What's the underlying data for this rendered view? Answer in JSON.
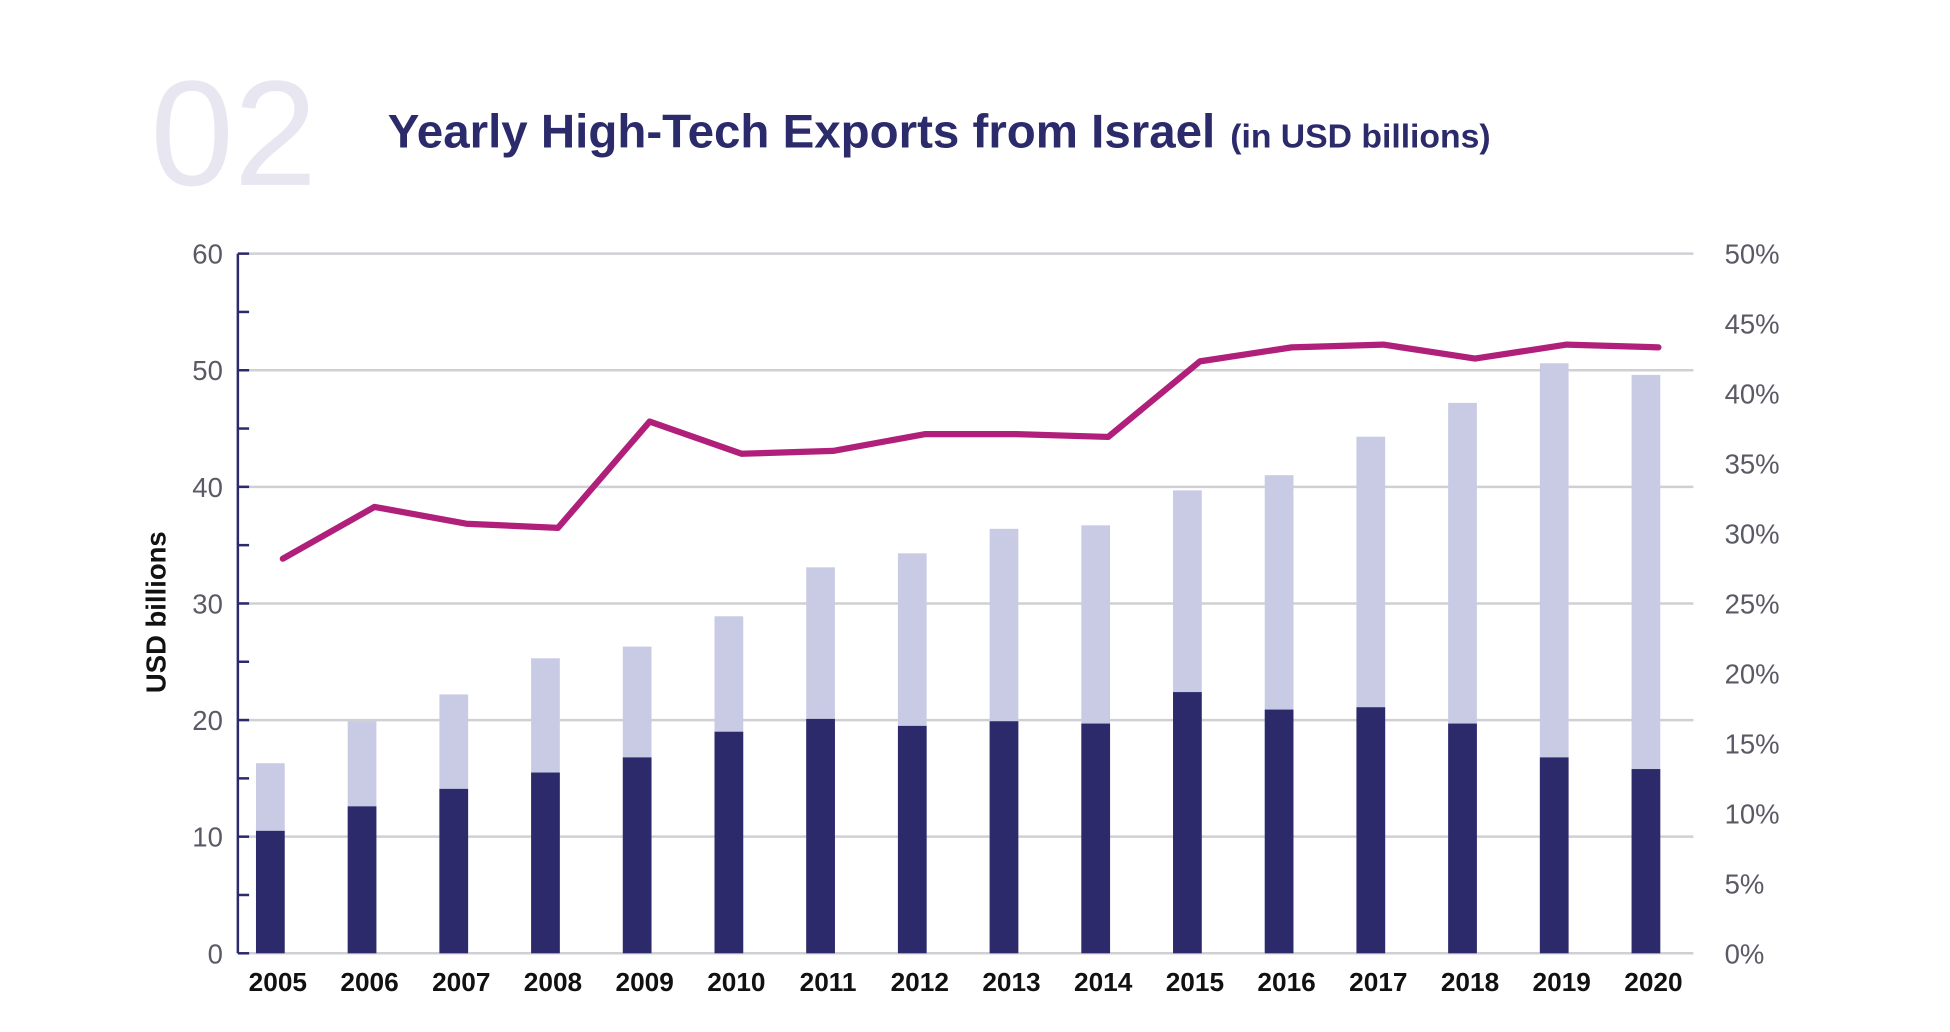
{
  "header": {
    "number": "02",
    "title": "Yearly High-Tech Exports from Israel",
    "subtitle": "(in USD billions)"
  },
  "colors": {
    "dark_bar": "#2d2a6b",
    "light_bar": "#c9cbe5",
    "line": "#b0207a",
    "grid": "#d0d0d4",
    "axis": "#2b2a6b"
  },
  "chart_data": {
    "type": "bar",
    "title": "Yearly High-Tech Exports from Israel (in USD billions)",
    "ylabel": "USD billions",
    "ylim": [
      0,
      60
    ],
    "y_ticks": [
      "0",
      "10",
      "20",
      "30",
      "40",
      "50",
      "60"
    ],
    "y2lim": [
      0,
      50
    ],
    "y2_ticks": [
      "0%",
      "5%",
      "10%",
      "15%",
      "20%",
      "25%",
      "30%",
      "35%",
      "40%",
      "45%",
      "50%"
    ],
    "grid": true,
    "categories": [
      "2005",
      "2006",
      "2007",
      "2008",
      "2009",
      "2010",
      "2011",
      "2012",
      "2013",
      "2014",
      "2015",
      "2016",
      "2017",
      "2018",
      "2019",
      "2020"
    ],
    "series": [
      {
        "type": "bar",
        "role": "total",
        "values": [
          16.3,
          19.9,
          22.2,
          25.3,
          26.3,
          28.9,
          33.1,
          34.3,
          36.4,
          36.7,
          39.7,
          41.0,
          44.3,
          47.2,
          50.6,
          49.6
        ]
      },
      {
        "type": "bar",
        "role": "dark-portion",
        "values": [
          10.5,
          12.6,
          14.1,
          15.5,
          16.8,
          19.0,
          20.1,
          19.5,
          19.9,
          19.7,
          22.4,
          20.9,
          21.1,
          19.7,
          16.8,
          15.8
        ]
      },
      {
        "type": "line",
        "axis": "right",
        "unit": "%",
        "values": [
          28.2,
          31.9,
          30.7,
          30.4,
          38.0,
          35.7,
          35.9,
          37.1,
          37.1,
          36.9,
          42.3,
          43.3,
          43.5,
          42.5,
          43.5,
          43.3
        ]
      }
    ]
  }
}
